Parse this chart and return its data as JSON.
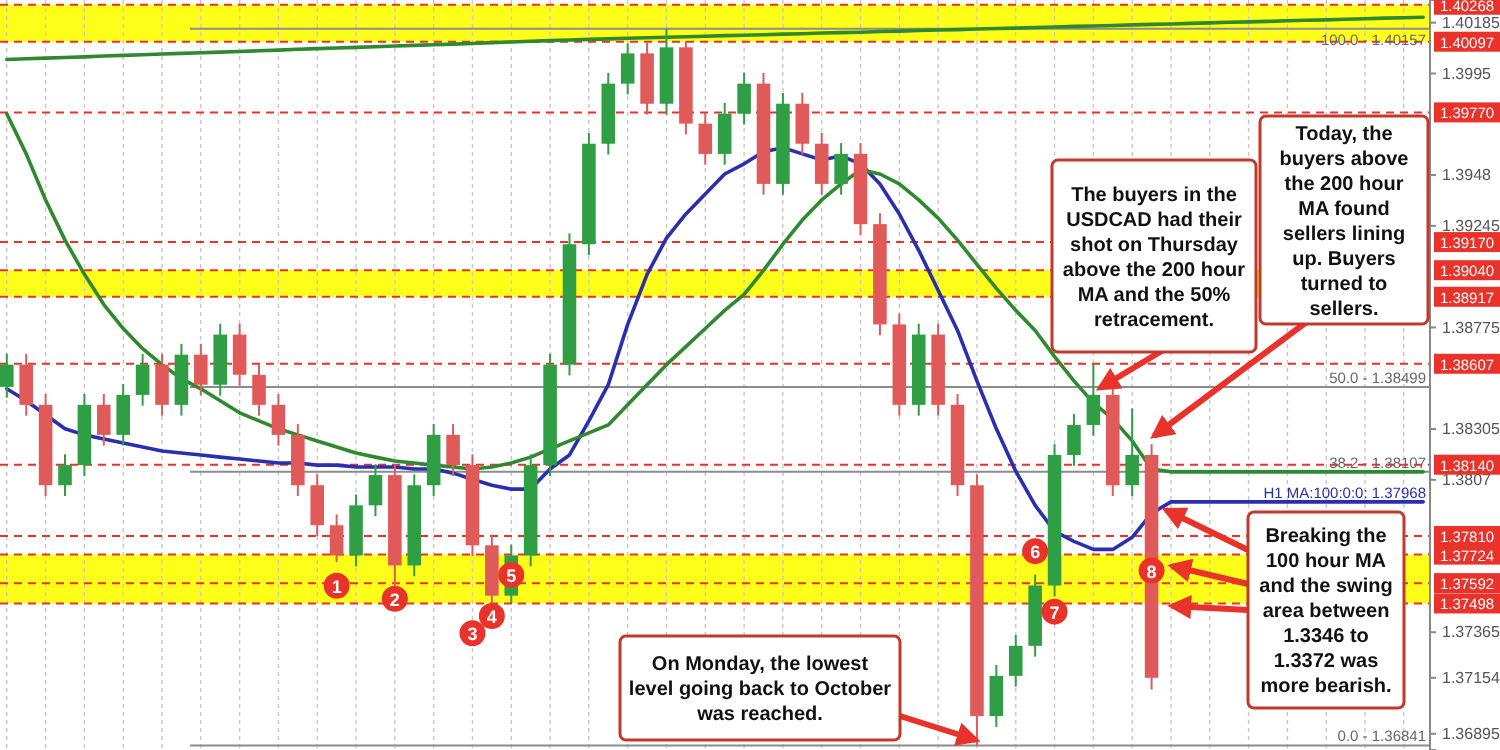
{
  "chart_data": {
    "type": "candlestick",
    "categories": [
      null,
      null,
      null,
      null,
      null,
      null,
      null,
      null,
      null,
      null,
      null,
      null,
      null,
      null,
      null,
      null,
      null,
      null,
      null,
      null,
      null,
      null,
      null,
      null,
      null,
      null,
      null,
      null,
      null,
      null,
      null,
      null,
      null,
      null,
      null,
      null,
      null,
      null,
      null,
      null,
      null,
      null,
      null,
      null,
      null,
      null,
      null,
      null,
      null,
      null,
      null,
      null,
      null,
      null,
      null,
      null,
      null,
      null,
      null,
      null,
      null,
      null,
      null,
      null,
      null,
      null,
      null,
      null,
      null,
      null,
      null,
      null,
      null,
      null
    ],
    "ohlc": [
      [
        1.385,
        1.38653,
        1.3845,
        1.38603
      ],
      [
        1.38603,
        1.38653,
        1.38367,
        1.38417
      ],
      [
        1.38417,
        1.38467,
        1.37995,
        1.38045
      ],
      [
        1.38045,
        1.38188,
        1.37995,
        1.38138
      ],
      [
        1.38138,
        1.38467,
        1.38088,
        1.38417
      ],
      [
        1.38417,
        1.38467,
        1.38228,
        1.38278
      ],
      [
        1.38278,
        1.38513,
        1.38228,
        1.38463
      ],
      [
        1.38463,
        1.38653,
        1.38413,
        1.38603
      ],
      [
        1.38603,
        1.38653,
        1.38367,
        1.38417
      ],
      [
        1.38417,
        1.38699,
        1.38367,
        1.38649
      ],
      [
        1.38649,
        1.38699,
        1.3846,
        1.3851
      ],
      [
        1.3851,
        1.38792,
        1.3846,
        1.38742
      ],
      [
        1.38742,
        1.38792,
        1.38506,
        1.38556
      ],
      [
        1.38556,
        1.38606,
        1.38367,
        1.38417
      ],
      [
        1.38417,
        1.38467,
        1.38228,
        1.38278
      ],
      [
        1.38278,
        1.38328,
        1.37995,
        1.38045
      ],
      [
        1.38045,
        1.38095,
        1.3781,
        1.3786
      ],
      [
        1.3786,
        1.3791,
        1.3769,
        1.3772
      ],
      [
        1.3772,
        1.38002,
        1.3767,
        1.37952
      ],
      [
        1.37952,
        1.38142,
        1.37902,
        1.38092
      ],
      [
        1.38092,
        1.38142,
        1.3758,
        1.37674
      ],
      [
        1.37674,
        1.38095,
        1.37624,
        1.38045
      ],
      [
        1.38045,
        1.38328,
        1.37995,
        1.38278
      ],
      [
        1.38278,
        1.38328,
        1.38088,
        1.38138
      ],
      [
        1.38138,
        1.38188,
        1.37717,
        1.37767
      ],
      [
        1.37767,
        1.37817,
        1.3749,
        1.37534
      ],
      [
        1.37534,
        1.3777,
        1.375,
        1.3772
      ],
      [
        1.3772,
        1.38188,
        1.3767,
        1.38138
      ],
      [
        1.38138,
        1.38653,
        1.38088,
        1.38603
      ],
      [
        1.38603,
        1.3921,
        1.38553,
        1.3916
      ],
      [
        1.3916,
        1.39675,
        1.3911,
        1.39625
      ],
      [
        1.39625,
        1.39953,
        1.39575,
        1.39903
      ],
      [
        1.39903,
        1.40089,
        1.39853,
        1.40043
      ],
      [
        1.40043,
        1.40093,
        1.3976,
        1.3981
      ],
      [
        1.3981,
        1.40157,
        1.3976,
        1.40071
      ],
      [
        1.40071,
        1.401,
        1.39668,
        1.39718
      ],
      [
        1.39718,
        1.39768,
        1.39528,
        1.39578
      ],
      [
        1.39578,
        1.39814,
        1.39528,
        1.39764
      ],
      [
        1.39764,
        1.39953,
        1.39714,
        1.39903
      ],
      [
        1.39903,
        1.39953,
        1.39389,
        1.39439
      ],
      [
        1.39439,
        1.3986,
        1.39389,
        1.3981
      ],
      [
        1.3981,
        1.3986,
        1.39575,
        1.39625
      ],
      [
        1.39625,
        1.39675,
        1.39389,
        1.39439
      ],
      [
        1.39439,
        1.39628,
        1.39389,
        1.39578
      ],
      [
        1.39578,
        1.39628,
        1.39203,
        1.39253
      ],
      [
        1.39253,
        1.39303,
        1.38739,
        1.38789
      ],
      [
        1.38789,
        1.38839,
        1.38367,
        1.38417
      ],
      [
        1.38417,
        1.38792,
        1.38367,
        1.38742
      ],
      [
        1.38742,
        1.38792,
        1.38367,
        1.38417
      ],
      [
        1.38417,
        1.38467,
        1.37995,
        1.38045
      ],
      [
        1.38045,
        1.38095,
        1.36841,
        1.36977
      ],
      [
        1.36977,
        1.37213,
        1.36927,
        1.37163
      ],
      [
        1.37163,
        1.37352,
        1.37113,
        1.37302
      ],
      [
        1.37302,
        1.37631,
        1.37252,
        1.37581
      ],
      [
        1.37581,
        1.38235,
        1.37531,
        1.38185
      ],
      [
        1.38185,
        1.38374,
        1.38135,
        1.38324
      ],
      [
        1.38324,
        1.38607,
        1.38274,
        1.38463
      ],
      [
        1.38463,
        1.38513,
        1.37995,
        1.38045
      ],
      [
        1.38045,
        1.384,
        1.37995,
        1.38185
      ],
      [
        1.38185,
        1.38235,
        1.371,
        1.37154
      ],
      null,
      null,
      null,
      null,
      null,
      null,
      null,
      null,
      null,
      null,
      null,
      null,
      null,
      null
    ],
    "series": [
      {
        "type": "line",
        "color": "#2a2fb0",
        "values": [
          1.38491,
          1.38436,
          1.38371,
          1.38306,
          1.38278,
          1.38259,
          1.3824,
          1.38222,
          1.38203,
          1.38194,
          1.38185,
          1.38175,
          1.38166,
          1.38157,
          1.38148,
          1.38148,
          1.38138,
          1.38138,
          1.38129,
          1.38129,
          1.38129,
          1.3812,
          1.3812,
          1.38101,
          1.38073,
          1.38045,
          1.38027,
          1.38027,
          1.3812,
          1.38185,
          1.38343,
          1.3851,
          1.38789,
          1.39021,
          1.39188,
          1.393,
          1.39392,
          1.39485,
          1.39532,
          1.39588,
          1.39606,
          1.39578,
          1.3955,
          1.39569,
          1.39532,
          1.39439,
          1.393,
          1.39132,
          1.38947,
          1.38761,
          1.38528,
          1.38306,
          1.3811,
          1.37952,
          1.37832,
          1.37785,
          1.37748,
          1.37748,
          1.37804,
          1.37915,
          1.37968,
          1.37968,
          1.37968,
          1.37968,
          1.37968,
          1.37968,
          1.37968,
          1.37968,
          1.37968,
          1.37968,
          1.37968,
          1.37968,
          1.37968,
          1.37968
        ]
      },
      {
        "type": "line",
        "color": "#2f8a2f",
        "values": [
          1.39764,
          1.39578,
          1.39365,
          1.39179,
          1.39021,
          1.38881,
          1.3877,
          1.38677,
          1.38603,
          1.38538,
          1.38491,
          1.38436,
          1.3838,
          1.38343,
          1.38306,
          1.38278,
          1.3825,
          1.38222,
          1.38194,
          1.38175,
          1.38157,
          1.38148,
          1.38138,
          1.38129,
          1.3812,
          1.38129,
          1.38148,
          1.38175,
          1.38213,
          1.3825,
          1.38287,
          1.38324,
          1.38417,
          1.3851,
          1.38603,
          1.38686,
          1.3877,
          1.38854,
          1.38928,
          1.39039,
          1.3916,
          1.39272,
          1.39365,
          1.39439,
          1.39504,
          1.39485,
          1.39439,
          1.39365,
          1.39281,
          1.39179,
          1.39067,
          1.38956,
          1.38854,
          1.38761,
          1.3864,
          1.38528,
          1.38426,
          1.38352,
          1.3825,
          1.3812,
          1.38107,
          1.38107,
          1.38107,
          1.38107,
          1.38107,
          1.38107,
          1.38107,
          1.38107,
          1.38107,
          1.38107,
          1.38107,
          1.38107,
          1.38107,
          1.38107
        ]
      },
      {
        "type": "line",
        "color": "#2f8a2f",
        "values": [
          1.40015,
          1.40018,
          1.40021,
          1.40024,
          1.40027,
          1.40031,
          1.40034,
          1.40037,
          1.4004,
          1.40043,
          1.40046,
          1.40049,
          1.40052,
          1.40055,
          1.40058,
          1.40062,
          1.40065,
          1.40068,
          1.40071,
          1.40074,
          1.40077,
          1.4008,
          1.40083,
          1.40086,
          1.40089,
          1.40093,
          1.40096,
          1.40099,
          1.40102,
          1.40105,
          1.40108,
          1.4011,
          1.40113,
          1.40115,
          1.40118,
          1.4012,
          1.40122,
          1.40125,
          1.40127,
          1.40129,
          1.40132,
          1.40134,
          1.40137,
          1.40139,
          1.40141,
          1.40144,
          1.40146,
          1.40149,
          1.40151,
          1.40153,
          1.40156,
          1.40158,
          1.4016,
          1.40163,
          1.40165,
          1.40168,
          1.4017,
          1.40172,
          1.40175,
          1.40177,
          1.40179,
          1.40182,
          1.40184,
          1.40187,
          1.40189,
          1.40191,
          1.40194,
          1.40196,
          1.40198,
          1.40201,
          1.40203,
          1.40206,
          1.40208,
          1.4021
        ]
      }
    ],
    "ylim": [
      1.3682,
      1.4029
    ],
    "yticks": [
      1.40185,
      1.3995,
      1.3948,
      1.39245,
      1.38775,
      1.38305,
      1.3807,
      1.37365,
      {
        "value": 1.37154,
        "label": "1.37154"
      },
      1.36895
    ],
    "bands": [
      {
        "axis": "y",
        "from": 1.40097,
        "to": 1.40268,
        "color": "#ffff00"
      },
      {
        "axis": "y",
        "from": 1.38917,
        "to": 1.3904,
        "color": "#ffff00"
      },
      {
        "axis": "y",
        "from": 1.37498,
        "to": 1.37724,
        "color": "#ffff00"
      }
    ],
    "ref_lines": [
      {
        "axis": "y",
        "value": 1.40268,
        "label": "1.40268",
        "color": "#e8322a",
        "line_style": "dashed"
      },
      {
        "axis": "y",
        "value": 1.40097,
        "label": "1.40097",
        "color": "#e8322a",
        "line_style": "dashed"
      },
      {
        "axis": "y",
        "value": 1.3977,
        "label": "1.39770",
        "color": "#e8322a",
        "line_style": "dashed"
      },
      {
        "axis": "y",
        "value": 1.3917,
        "label": "1.39170",
        "color": "#e8322a",
        "line_style": "dashed"
      },
      {
        "axis": "y",
        "value": 1.3904,
        "label": "1.39040",
        "color": "#e8322a",
        "line_style": "dashed"
      },
      {
        "axis": "y",
        "value": 1.38917,
        "label": "1.38917",
        "color": "#e8322a",
        "line_style": "dashed"
      },
      {
        "axis": "y",
        "value": 1.38607,
        "label": "1.38607",
        "color": "#e8322a",
        "line_style": "dashed"
      },
      {
        "axis": "y",
        "value": 1.3814,
        "label": "1.38140",
        "color": "#e8322a",
        "line_style": "dashed"
      },
      {
        "axis": "y",
        "value": 1.3781,
        "label": "1.37810",
        "color": "#e8322a",
        "line_style": "dashed"
      },
      {
        "axis": "y",
        "value": 1.37724,
        "label": "1.37724",
        "color": "#e8322a",
        "line_style": "dashed"
      },
      {
        "axis": "y",
        "value": 1.37592,
        "label": "1.37592",
        "color": "#e8322a",
        "line_style": "dashed"
      },
      {
        "axis": "y",
        "value": 1.37498,
        "label": "1.37498",
        "color": "#e8322a",
        "line_style": "dashed"
      },
      {
        "axis": "y",
        "value": 1.40157,
        "color": "#8c8c8c",
        "line_style": "solid"
      },
      {
        "axis": "y",
        "value": 1.38499,
        "color": "#8c8c8c",
        "line_style": "solid"
      },
      {
        "axis": "y",
        "value": 1.38107,
        "color": "#8c8c8c",
        "line_style": "solid"
      },
      {
        "axis": "y",
        "value": 1.36841,
        "color": "#8c8c8c",
        "line_style": "solid"
      }
    ],
    "annotations": [
      "The buyers in the USDCAD had their shot on Thursday above the 200 hour MA and the 50% retracement.",
      "Today, the buyers above the 200 hour MA found sellers lining up. Buyers turned to sellers.",
      "Breaking the 100 hour MA and the swing area between 1.3346 to 1.3372 was more bearish.",
      "On Monday, the lowest level going back to October was reached.",
      {
        "text": "H1 MA:100:0:0: 1.37968",
        "y": 1.37968
      },
      {
        "text": "100.0 - 1.40157",
        "y": 1.40157
      },
      {
        "text": "50.0 - 1.38499",
        "y": 1.38499
      },
      {
        "text": "38.2 - 1.38107",
        "y": 1.38107
      },
      {
        "text": "0.0 - 1.36841",
        "y": 1.36841
      },
      {
        "text": "1",
        "y": 1.3758
      },
      {
        "text": "2",
        "y": 1.3752
      },
      {
        "text": "3",
        "y": 1.3736
      },
      {
        "text": "4",
        "y": 1.3744
      },
      {
        "text": "5",
        "y": 1.3763
      },
      {
        "text": "6",
        "y": 1.3774
      },
      {
        "text": "7",
        "y": 1.3746
      },
      {
        "text": "8",
        "y": 1.3765
      }
    ],
    "grid": "x"
  }
}
